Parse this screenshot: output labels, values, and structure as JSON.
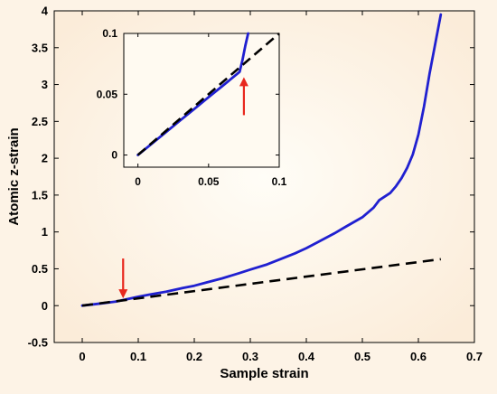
{
  "chart_data": [
    {
      "type": "line",
      "title": "",
      "xlabel": "Sample strain",
      "ylabel": "Atomic z-strain",
      "xlim": [
        -0.05,
        0.7
      ],
      "ylim": [
        -0.5,
        4
      ],
      "xticks": [
        0,
        0.1,
        0.2,
        0.3,
        0.4,
        0.5,
        0.6,
        0.7
      ],
      "xtick_labels": [
        "0",
        "0.1",
        "0.2",
        "0.3",
        "0.4",
        "0.5",
        "0.6",
        "0.7"
      ],
      "yticks": [
        -0.5,
        0,
        0.5,
        1,
        1.5,
        2,
        2.5,
        3,
        3.5,
        4
      ],
      "ytick_labels": [
        "-0.5",
        "0",
        "0.5",
        "1",
        "1.5",
        "2",
        "2.5",
        "3",
        "3.5",
        "4"
      ],
      "grid": false,
      "legend": "none",
      "series": [
        {
          "color": "#2020d0",
          "style": "solid",
          "x": [
            0,
            0.02,
            0.04,
            0.06,
            0.075,
            0.1,
            0.12,
            0.15,
            0.18,
            0.2,
            0.22,
            0.25,
            0.28,
            0.3,
            0.33,
            0.35,
            0.38,
            0.4,
            0.42,
            0.45,
            0.47,
            0.5,
            0.52,
            0.53,
            0.55,
            0.56,
            0.57,
            0.58,
            0.59,
            0.6,
            0.61,
            0.62,
            0.63,
            0.64
          ],
          "y": [
            0,
            0.018,
            0.036,
            0.055,
            0.08,
            0.12,
            0.15,
            0.19,
            0.24,
            0.27,
            0.31,
            0.37,
            0.44,
            0.49,
            0.56,
            0.62,
            0.71,
            0.78,
            0.86,
            0.98,
            1.07,
            1.2,
            1.33,
            1.43,
            1.53,
            1.62,
            1.73,
            1.87,
            2.05,
            2.32,
            2.7,
            3.15,
            3.55,
            3.95
          ]
        },
        {
          "color": "#000000",
          "style": "dashed",
          "x": [
            0,
            0.64
          ],
          "y": [
            0,
            0.63
          ]
        }
      ],
      "annotations": [
        {
          "type": "arrow",
          "color": "#e8281e",
          "x": 0.073,
          "y": 0.1,
          "direction": "down"
        }
      ]
    },
    {
      "type": "line",
      "title": "",
      "xlabel": "",
      "ylabel": "",
      "xlim": [
        -0.01,
        0.1
      ],
      "ylim": [
        -0.01,
        0.1
      ],
      "xticks": [
        0,
        0.05,
        0.1
      ],
      "xtick_labels": [
        "0",
        "0.05",
        "0.1"
      ],
      "yticks": [
        0,
        0.05,
        0.1
      ],
      "ytick_labels": [
        "0",
        "0.05",
        "0.1"
      ],
      "grid": false,
      "legend": "none",
      "series": [
        {
          "color": "#2020d0",
          "style": "solid",
          "x": [
            0,
            0.01,
            0.02,
            0.03,
            0.04,
            0.05,
            0.06,
            0.07,
            0.072,
            0.074,
            0.076,
            0.078
          ],
          "y": [
            0,
            0.0095,
            0.019,
            0.0285,
            0.038,
            0.0475,
            0.057,
            0.0665,
            0.0685,
            0.078,
            0.09,
            0.1
          ]
        },
        {
          "color": "#000000",
          "style": "dashed",
          "x": [
            0,
            0.1
          ],
          "y": [
            0,
            0.1
          ]
        }
      ],
      "annotations": [
        {
          "type": "arrow",
          "color": "#e8281e",
          "x": 0.075,
          "y": 0.064,
          "direction": "up"
        }
      ]
    }
  ]
}
